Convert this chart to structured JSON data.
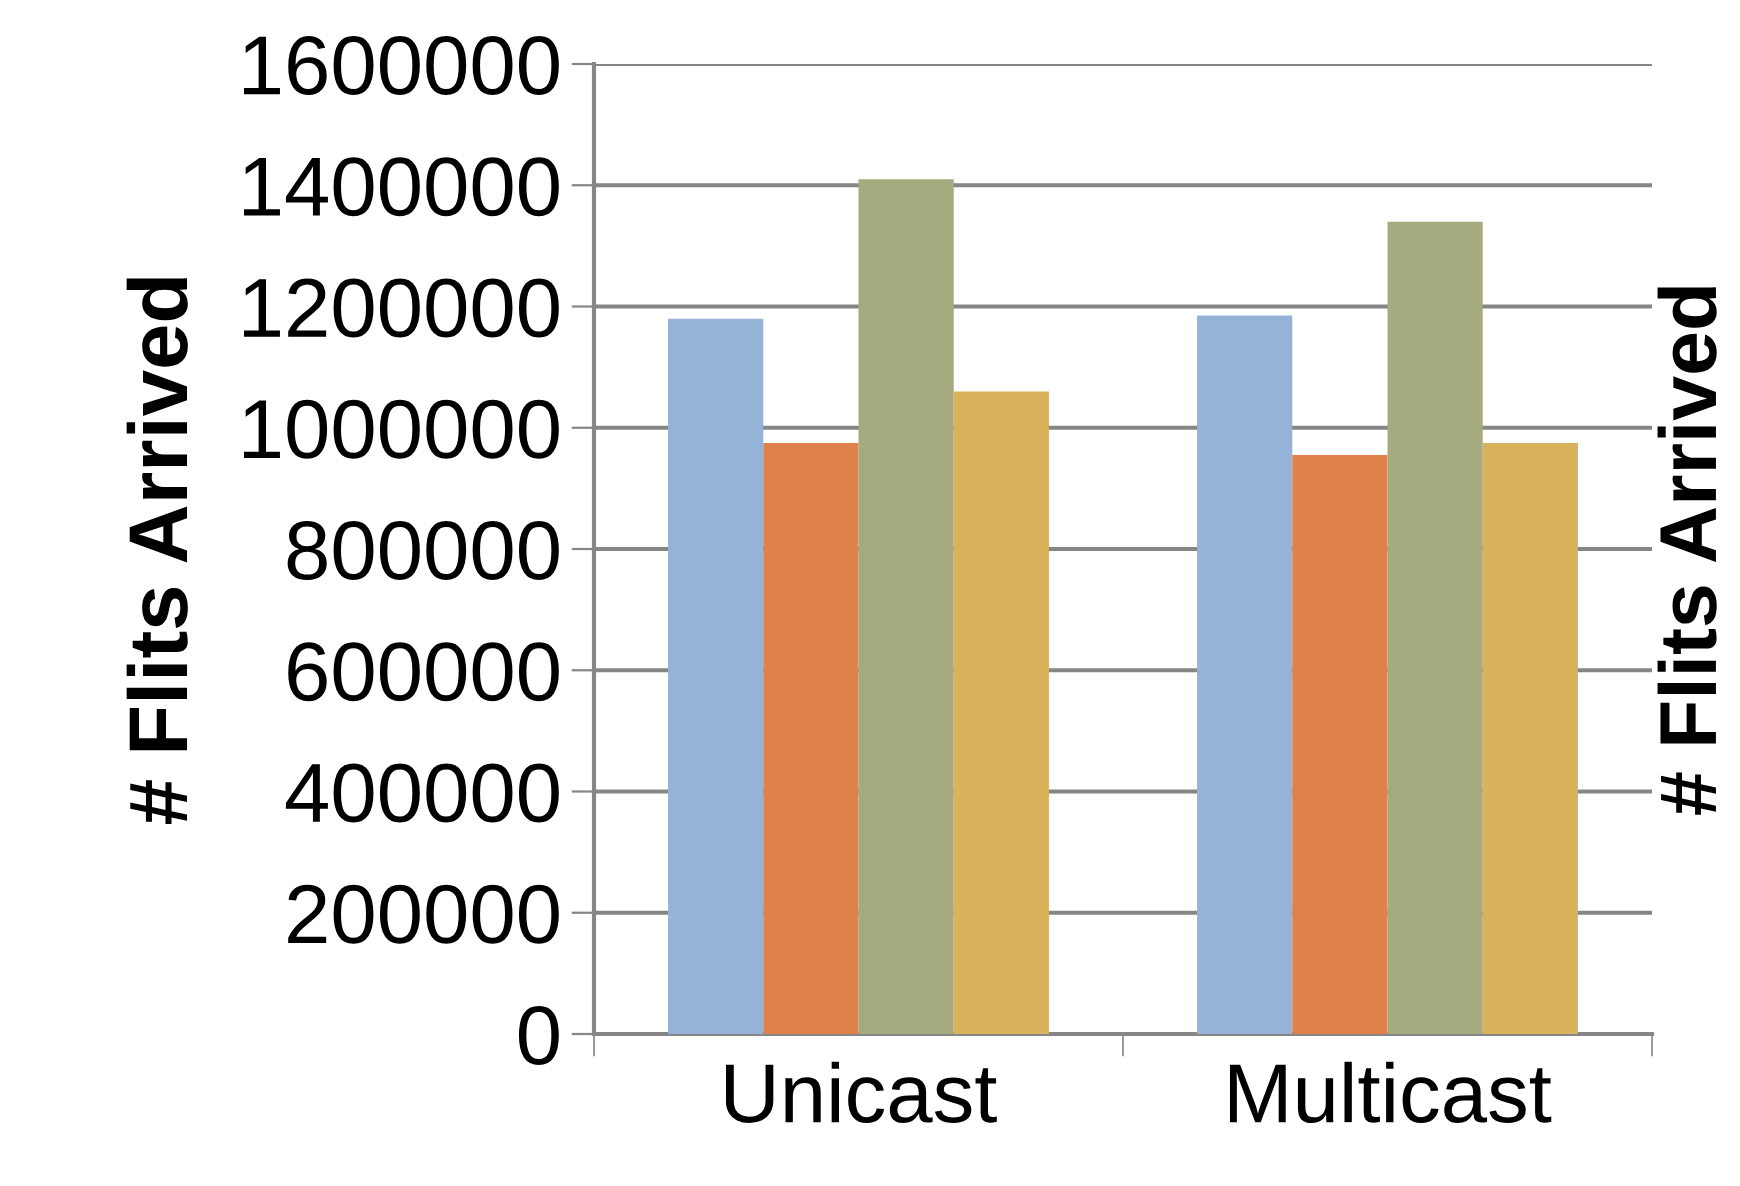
{
  "chart_data": {
    "type": "bar",
    "ylabel": "# Flits Arrived",
    "y2label": "# Flits Arrived",
    "categories": [
      "Unicast",
      "Multicast"
    ],
    "series": [
      {
        "color": "#95b3d7",
        "values": [
          1180000,
          1185000
        ]
      },
      {
        "color": "#e0804a",
        "values": [
          975000,
          955000
        ]
      },
      {
        "color": "#a5ab7f",
        "values": [
          1410000,
          1340000
        ]
      },
      {
        "color": "#d9b25c",
        "values": [
          1060000,
          975000
        ]
      }
    ],
    "ylim": [
      0,
      1600000
    ],
    "yticks": [
      0,
      200000,
      400000,
      600000,
      800000,
      1000000,
      1200000,
      1400000,
      1600000
    ],
    "grid": "y"
  }
}
